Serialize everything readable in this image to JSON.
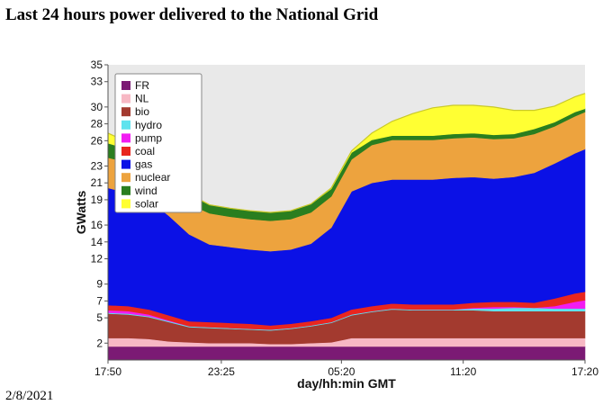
{
  "page": {
    "title": "Last 24 hours power delivered to the National Grid",
    "date": "2/8/2021"
  },
  "chart_data": {
    "type": "area",
    "stacked": true,
    "xlabel": "day/hh:min GMT",
    "ylabel": "GWatts",
    "x_ticks": [
      "17:50",
      "23:25",
      "05:20",
      "11:20",
      "17:20"
    ],
    "x_tick_positions": [
      0,
      5.583,
      11.5,
      17.5,
      23.5
    ],
    "y_ticks": [
      2,
      5,
      7,
      9,
      12,
      14,
      16,
      19,
      21,
      23,
      26,
      28,
      30,
      33,
      35
    ],
    "ylim": [
      0,
      35
    ],
    "xlim": [
      0,
      23.5
    ],
    "legend_position": "top-left",
    "x": [
      0,
      1,
      2,
      3,
      4,
      5,
      6,
      7,
      8,
      9,
      10,
      11,
      12,
      13,
      14,
      15,
      16,
      17,
      18,
      19,
      20,
      21,
      22,
      23,
      23.5
    ],
    "series": [
      {
        "name": "FR",
        "color": "#7b1a74",
        "values": [
          1.6,
          1.6,
          1.6,
          1.6,
          1.6,
          1.6,
          1.6,
          1.6,
          1.6,
          1.6,
          1.6,
          1.6,
          1.6,
          1.6,
          1.6,
          1.6,
          1.6,
          1.6,
          1.6,
          1.6,
          1.6,
          1.6,
          1.6,
          1.6,
          1.6
        ]
      },
      {
        "name": "NL",
        "color": "#f7b8c4",
        "values": [
          1.0,
          1.0,
          0.9,
          0.6,
          0.5,
          0.4,
          0.4,
          0.4,
          0.3,
          0.3,
          0.4,
          0.5,
          1.0,
          1.0,
          1.0,
          1.0,
          1.0,
          1.0,
          1.0,
          1.0,
          1.0,
          1.0,
          1.0,
          1.0,
          1.0
        ]
      },
      {
        "name": "bio",
        "color": "#a33a2f",
        "values": [
          2.9,
          2.8,
          2.6,
          2.3,
          1.8,
          1.8,
          1.7,
          1.6,
          1.6,
          1.8,
          2.0,
          2.3,
          2.7,
          3.1,
          3.4,
          3.3,
          3.3,
          3.3,
          3.3,
          3.2,
          3.2,
          3.2,
          3.2,
          3.2,
          3.2
        ]
      },
      {
        "name": "hydro",
        "color": "#5ee3ee",
        "values": [
          0.1,
          0.1,
          0.1,
          0.1,
          0.1,
          0.1,
          0.1,
          0.1,
          0.1,
          0.1,
          0.1,
          0.1,
          0.1,
          0.1,
          0.1,
          0.1,
          0.1,
          0.1,
          0.2,
          0.3,
          0.4,
          0.4,
          0.3,
          0.3,
          0.3
        ]
      },
      {
        "name": "pump",
        "color": "#f21cf2",
        "values": [
          0.3,
          0.3,
          0.2,
          0.1,
          0.0,
          0.0,
          0.0,
          0.0,
          0.0,
          0.0,
          0.0,
          0.0,
          0.0,
          0.0,
          0.0,
          0.0,
          0.0,
          0.0,
          0.1,
          0.2,
          0.1,
          0.0,
          0.3,
          0.8,
          1.0
        ]
      },
      {
        "name": "coal",
        "color": "#e8261f",
        "values": [
          0.6,
          0.6,
          0.6,
          0.6,
          0.6,
          0.6,
          0.6,
          0.6,
          0.5,
          0.5,
          0.5,
          0.5,
          0.6,
          0.6,
          0.6,
          0.6,
          0.6,
          0.6,
          0.6,
          0.6,
          0.6,
          0.6,
          0.9,
          1.0,
          1.0
        ]
      },
      {
        "name": "gas",
        "color": "#0b11e6",
        "values": [
          13.9,
          13.4,
          13.0,
          11.8,
          10.3,
          9.2,
          9.0,
          8.8,
          8.8,
          8.8,
          9.2,
          10.7,
          14.0,
          14.6,
          14.7,
          14.8,
          14.8,
          15.0,
          14.9,
          14.6,
          14.8,
          15.4,
          16.0,
          16.6,
          16.9
        ]
      },
      {
        "name": "nuclear",
        "color": "#eda33e",
        "values": [
          3.6,
          3.6,
          3.6,
          3.6,
          3.6,
          3.7,
          3.6,
          3.6,
          3.6,
          3.6,
          3.7,
          3.7,
          3.8,
          4.5,
          4.7,
          4.7,
          4.7,
          4.7,
          4.7,
          4.7,
          4.6,
          4.6,
          4.4,
          4.4,
          4.4
        ]
      },
      {
        "name": "wind",
        "color": "#2a7e1f",
        "values": [
          1.7,
          1.6,
          1.3,
          1.2,
          1.1,
          1.0,
          1.0,
          1.0,
          1.0,
          1.0,
          1.0,
          0.9,
          0.8,
          0.6,
          0.5,
          0.5,
          0.5,
          0.5,
          0.5,
          0.5,
          0.5,
          0.6,
          0.5,
          0.5,
          0.4
        ]
      },
      {
        "name": "solar",
        "color": "#ffff33",
        "values": [
          1.2,
          0.8,
          0.3,
          0.2,
          0.1,
          0.0,
          0.0,
          0.0,
          0.0,
          0.0,
          0.0,
          0.1,
          0.2,
          0.8,
          1.7,
          2.6,
          3.3,
          3.4,
          3.3,
          3.3,
          2.8,
          2.2,
          1.9,
          1.8,
          1.8
        ]
      }
    ]
  }
}
